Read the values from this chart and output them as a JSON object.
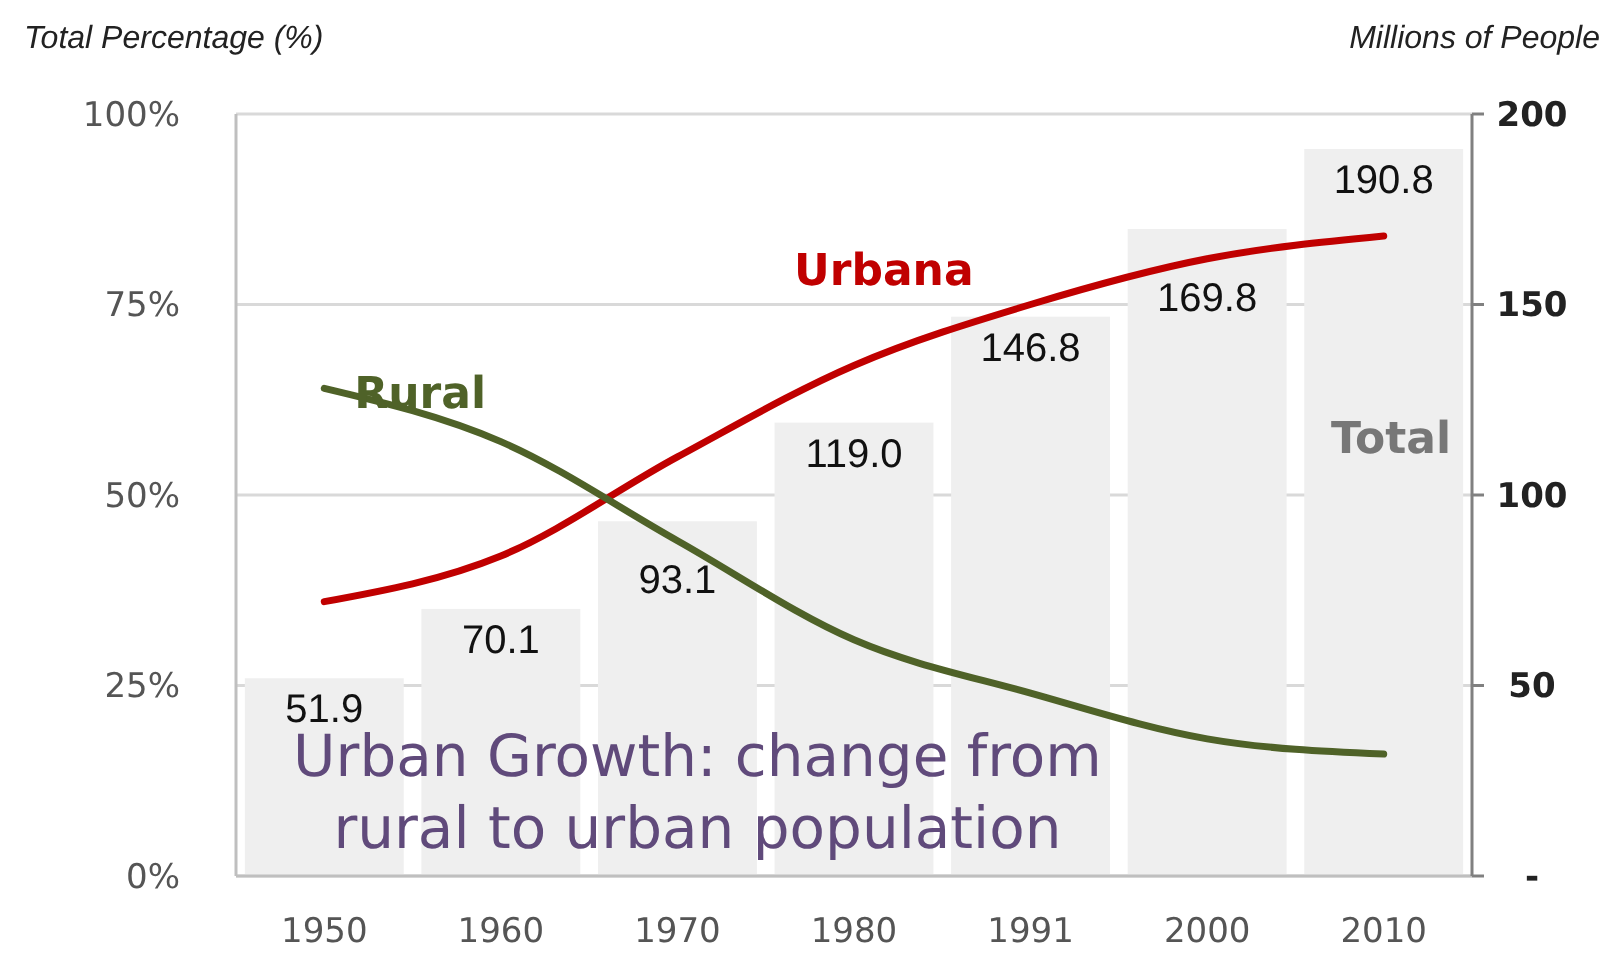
{
  "chart_data": {
    "type": "bar",
    "categories": [
      "1950",
      "1960",
      "1970",
      "1980",
      "1991",
      "2000",
      "2010"
    ],
    "series": [
      {
        "name": "Total",
        "axis": "y2",
        "color": "#efefef",
        "values": [
          51.9,
          70.1,
          93.1,
          119.0,
          146.8,
          169.8,
          190.8
        ],
        "value_labels": [
          "51.9",
          "70.1",
          "93.1",
          "119.0",
          "146.8",
          "169.8",
          "190.8"
        ]
      },
      {
        "name": "Urbana",
        "type": "line",
        "color": "#c00000",
        "values": [
          36,
          42,
          55,
          67,
          75,
          81,
          84
        ]
      },
      {
        "name": "Rural",
        "type": "line",
        "color": "#4f6228",
        "values": [
          64,
          57,
          44,
          31,
          24,
          18,
          16
        ]
      }
    ],
    "ylabel": "Total Percentage (%)",
    "y2label": "Millions of People",
    "ylim": [
      0,
      100
    ],
    "yticks": [
      {
        "value": 0,
        "label": "0%"
      },
      {
        "value": 25,
        "label": "25%"
      },
      {
        "value": 50,
        "label": "50%"
      },
      {
        "value": 75,
        "label": "75%"
      },
      {
        "value": 100,
        "label": "100%"
      }
    ],
    "y2lim": [
      0,
      200
    ],
    "y2ticks": [
      {
        "value": 0,
        "label": "-"
      },
      50,
      100,
      150,
      200
    ],
    "grid": "y",
    "legend": false,
    "marker": "none",
    "line_style": "solid",
    "annotations": [
      "Urban Growth: change from rural to urban population"
    ]
  }
}
